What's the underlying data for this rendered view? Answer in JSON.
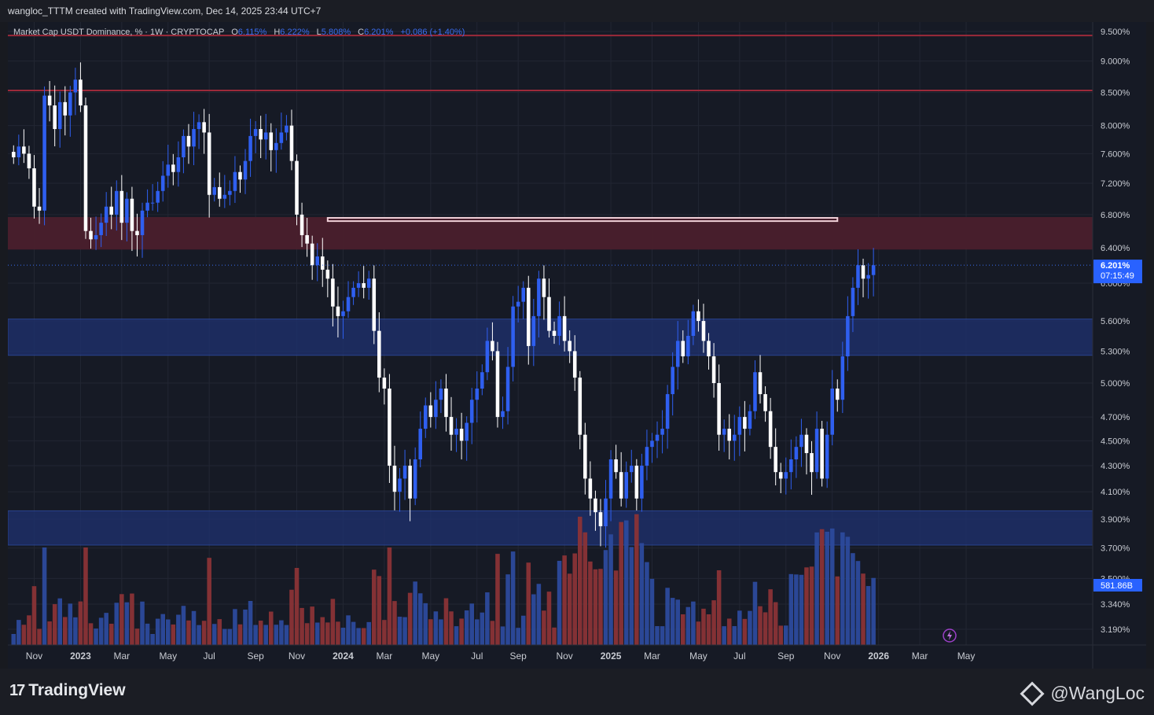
{
  "header": {
    "credit": "wangloc_TTTM created with TradingView.com, Dec 14, 2025 23:44 UTC+7"
  },
  "legend": {
    "title": "Market Cap USDT Dominance, % · 1W · CRYPTOCAP",
    "o_label": "O",
    "o": "6.115%",
    "h_label": "H",
    "h": "6.222%",
    "l_label": "L",
    "l": "5.808%",
    "c_label": "C",
    "c": "6.201%",
    "change": "+0.086 (+1.40%)"
  },
  "price_badge": {
    "value": "6.201%",
    "countdown": "07:15:49"
  },
  "volume_badge": "581.86B",
  "footer": {
    "brand": "TradingView",
    "watermark": "@WangLoc"
  },
  "colors": {
    "up": "#2f5ff0",
    "down": "#ffffff",
    "vol_up": "#2c4a9c",
    "vol_down": "#8a3336",
    "resistance_zone": "#4a1f2c",
    "support_zone": "#1e3170",
    "line": "#9c2a3a"
  },
  "icons": {
    "replay": "lightning-icon",
    "brand_logo": "tradingview-logo-icon",
    "watermark_logo": "binance-diamond-icon"
  },
  "chart_data": {
    "type": "candlestick",
    "title": "Market Cap USDT Dominance, % · 1W · CRYPTOCAP",
    "scale": "log",
    "y_axis_ticks": [
      "9.500%",
      "9.000%",
      "8.500%",
      "8.000%",
      "7.600%",
      "7.200%",
      "6.800%",
      "6.400%",
      "6.000%",
      "5.600%",
      "5.300%",
      "5.000%",
      "4.700%",
      "4.500%",
      "4.300%",
      "4.100%",
      "3.900%",
      "3.700%",
      "3.500%",
      "3.340%",
      "3.190%"
    ],
    "y_tick_values": [
      9.5,
      9.0,
      8.5,
      8.0,
      7.6,
      7.2,
      6.8,
      6.4,
      6.0,
      5.6,
      5.3,
      5.0,
      4.7,
      4.5,
      4.3,
      4.1,
      3.9,
      3.7,
      3.5,
      3.34,
      3.19
    ],
    "x_axis_labels": [
      "Nov",
      "2023",
      "Mar",
      "May",
      "Jul",
      "Sep",
      "Nov",
      "2024",
      "Mar",
      "May",
      "Jul",
      "Sep",
      "Nov",
      "2025",
      "Mar",
      "May",
      "Jul",
      "Sep",
      "Nov",
      "2026",
      "Mar",
      "May"
    ],
    "x_label_bold": [
      "2023",
      "2024",
      "2025",
      "2026"
    ],
    "x_label_bar_index": [
      4,
      13,
      21,
      30,
      38,
      47,
      55,
      64,
      72,
      81,
      90,
      98,
      107,
      116,
      124,
      133,
      141,
      150,
      159,
      168,
      176,
      185
    ],
    "horizontal_lines": [
      9.43,
      8.53
    ],
    "zones": [
      {
        "kind": "resistance",
        "from": 6.38,
        "to": 6.77
      },
      {
        "kind": "resistance-box",
        "from": 6.72,
        "to": 6.76,
        "start_bar": 61,
        "end_bar": 160
      },
      {
        "kind": "support",
        "from": 5.26,
        "to": 5.62
      },
      {
        "kind": "support",
        "from": 3.72,
        "to": 3.96
      }
    ],
    "current_price": 6.201,
    "closes": [
      7.55,
      7.7,
      7.6,
      7.4,
      6.9,
      6.85,
      8.45,
      8.3,
      7.95,
      8.35,
      8.15,
      8.5,
      8.7,
      8.3,
      6.6,
      6.5,
      6.55,
      6.7,
      6.9,
      6.8,
      7.1,
      6.7,
      7.0,
      6.6,
      6.55,
      6.85,
      6.95,
      6.95,
      7.1,
      7.3,
      7.45,
      7.35,
      7.55,
      7.85,
      7.7,
      7.95,
      8.05,
      7.9,
      7.05,
      7.15,
      7.0,
      7.05,
      7.1,
      7.35,
      7.25,
      7.5,
      7.85,
      7.95,
      7.8,
      7.9,
      7.65,
      7.75,
      7.9,
      8.0,
      7.5,
      6.8,
      6.55,
      6.45,
      6.2,
      6.3,
      6.15,
      6.05,
      5.75,
      5.65,
      5.7,
      5.85,
      5.95,
      6.0,
      5.95,
      6.05,
      5.5,
      5.05,
      4.95,
      4.3,
      4.1,
      4.2,
      4.3,
      4.05,
      4.35,
      4.6,
      4.8,
      4.7,
      4.85,
      4.95,
      4.7,
      4.55,
      4.6,
      4.5,
      4.65,
      4.85,
      4.95,
      5.1,
      5.4,
      5.3,
      4.7,
      4.75,
      5.15,
      5.75,
      5.8,
      5.95,
      5.35,
      5.65,
      6.05,
      5.85,
      5.5,
      5.45,
      5.65,
      5.4,
      5.3,
      5.05,
      4.55,
      4.2,
      4.05,
      3.95,
      3.85,
      4.05,
      4.35,
      4.25,
      4.05,
      4.25,
      4.3,
      4.05,
      4.3,
      4.45,
      4.5,
      4.55,
      4.6,
      4.9,
      5.15,
      5.4,
      5.25,
      5.45,
      5.7,
      5.6,
      5.4,
      5.25,
      5.0,
      4.55,
      4.6,
      4.5,
      4.55,
      4.7,
      4.6,
      4.75,
      5.1,
      4.9,
      4.75,
      4.45,
      4.25,
      4.2,
      4.25,
      4.35,
      4.45,
      4.55,
      4.4,
      4.25,
      4.6,
      4.2,
      4.55,
      4.95,
      4.85,
      5.25,
      5.65,
      5.95,
      6.2,
      6.05,
      6.09,
      6.2
    ],
    "volume_note": "Volume bars per week, tallest near 3.9%-level area late 2024 and late 2025; last bar value 581.86B"
  }
}
